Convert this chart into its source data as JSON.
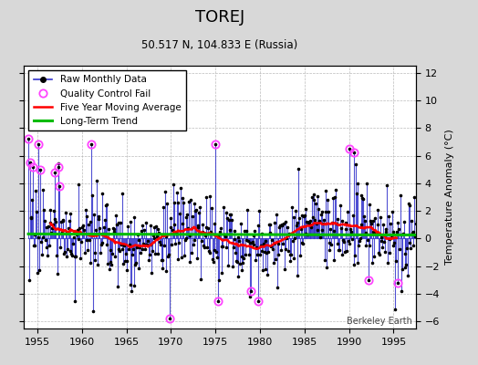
{
  "title": "TOREJ",
  "subtitle": "50.517 N, 104.833 E (Russia)",
  "ylabel": "Temperature Anomaly (°C)",
  "watermark": "Berkeley Earth",
  "xlim": [
    1953.5,
    1997.5
  ],
  "ylim": [
    -6.5,
    12.5
  ],
  "yticks": [
    -6,
    -4,
    -2,
    0,
    2,
    4,
    6,
    8,
    10,
    12
  ],
  "xticks": [
    1955,
    1960,
    1965,
    1970,
    1975,
    1980,
    1985,
    1990,
    1995
  ],
  "raw_color": "#3333CC",
  "qc_color": "#FF44FF",
  "moving_avg_color": "#FF0000",
  "trend_color": "#00BB00",
  "bg_color": "#FFFFFF",
  "fig_color": "#D8D8D8"
}
